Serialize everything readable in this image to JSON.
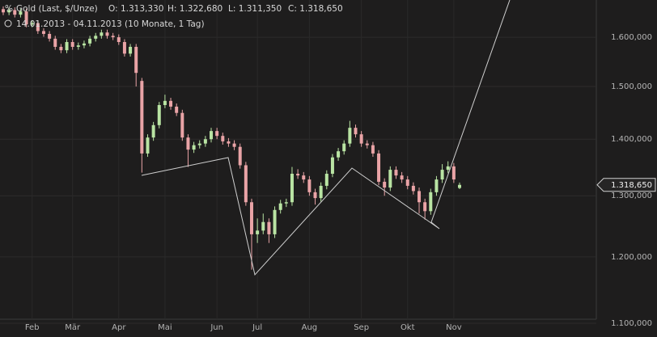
{
  "header": {
    "title": "Gold (Last, $/Unze)",
    "ohlc_labels": [
      "O: 1.313,330",
      "H: 1.322,680",
      "L: 1.311,350",
      "C: 1.318,650"
    ],
    "date_range": "14.01.2013 - 04.11.2013 (10 Monate, 1 Tag)"
  },
  "chart_data": {
    "type": "candlestick",
    "log_scale": true,
    "grid": true,
    "up_color": "#b9e4a3",
    "down_color": "#e9a3a6",
    "categories": [
      null,
      null,
      null,
      null,
      null,
      "Feb",
      null,
      null,
      null,
      null,
      null,
      null,
      "Mär",
      null,
      null,
      null,
      null,
      null,
      null,
      null,
      "Apr",
      null,
      null,
      null,
      null,
      null,
      null,
      null,
      "Mai",
      null,
      null,
      null,
      null,
      null,
      null,
      null,
      null,
      "Jun",
      null,
      null,
      null,
      null,
      null,
      null,
      "Jul",
      null,
      null,
      null,
      null,
      null,
      null,
      null,
      null,
      "Aug",
      null,
      null,
      null,
      null,
      null,
      null,
      null,
      null,
      "Sep",
      null,
      null,
      null,
      null,
      null,
      null,
      null,
      "Okt",
      null,
      null,
      null,
      null,
      null,
      null,
      null,
      "Nov",
      null
    ],
    "open": [
      1660000,
      1653000,
      1658000,
      1648000,
      1655000,
      1627000,
      1630000,
      1613000,
      1607000,
      1597000,
      1580000,
      1573000,
      1590000,
      1580000,
      1583000,
      1587000,
      1597000,
      1603000,
      1610000,
      1603000,
      1600000,
      1590000,
      1566000,
      1580000,
      1511000,
      1374000,
      1403000,
      1426000,
      1464000,
      1472000,
      1461000,
      1449000,
      1403000,
      1381000,
      1389000,
      1392000,
      1400000,
      1415000,
      1406000,
      1396000,
      1392000,
      1386000,
      1353000,
      1289000,
      1236000,
      1242000,
      1256000,
      1236000,
      1276000,
      1287000,
      1289000,
      1338000,
      1335000,
      1328000,
      1306000,
      1296000,
      1317000,
      1338000,
      1367000,
      1378000,
      1392000,
      1421000,
      1409000,
      1392000,
      1389000,
      1374000,
      1324000,
      1314000,
      1345000,
      1335000,
      1328000,
      1317000,
      1308000,
      1289000,
      1274000,
      1306000,
      1328000,
      1345000,
      1351000,
      1313330
    ],
    "high": [
      1666000,
      1664000,
      1664000,
      1661000,
      1661000,
      1636000,
      1636000,
      1619000,
      1613000,
      1603000,
      1586000,
      1596000,
      1596000,
      1589000,
      1593000,
      1603000,
      1609000,
      1616000,
      1616000,
      1609000,
      1606000,
      1596000,
      1586000,
      1586000,
      1517000,
      1409000,
      1432000,
      1470000,
      1484000,
      1478000,
      1467000,
      1455000,
      1409000,
      1395000,
      1398000,
      1406000,
      1421000,
      1421000,
      1412000,
      1402000,
      1398000,
      1392000,
      1359000,
      1295000,
      1262000,
      1270000,
      1262000,
      1282000,
      1293000,
      1295000,
      1350000,
      1346000,
      1341000,
      1334000,
      1312000,
      1323000,
      1344000,
      1373000,
      1384000,
      1398000,
      1434000,
      1427000,
      1415000,
      1398000,
      1395000,
      1380000,
      1330000,
      1351000,
      1351000,
      1341000,
      1334000,
      1323000,
      1314000,
      1295000,
      1312000,
      1334000,
      1355000,
      1360000,
      1357000,
      1322680
    ],
    "low": [
      1647000,
      1647000,
      1642000,
      1642000,
      1621000,
      1621000,
      1607000,
      1601000,
      1591000,
      1574000,
      1567000,
      1567000,
      1574000,
      1574000,
      1577000,
      1581000,
      1591000,
      1597000,
      1597000,
      1594000,
      1584000,
      1560000,
      1560000,
      1500000,
      1340000,
      1368000,
      1397000,
      1420000,
      1458000,
      1455000,
      1443000,
      1397000,
      1350000,
      1375000,
      1383000,
      1386000,
      1394000,
      1400000,
      1390000,
      1386000,
      1380000,
      1347000,
      1283000,
      1180000,
      1222000,
      1236000,
      1222000,
      1230000,
      1270000,
      1281000,
      1283000,
      1329000,
      1322000,
      1300000,
      1285000,
      1290000,
      1311000,
      1332000,
      1361000,
      1372000,
      1386000,
      1403000,
      1386000,
      1383000,
      1368000,
      1318000,
      1300000,
      1308000,
      1329000,
      1322000,
      1311000,
      1302000,
      1270000,
      1260000,
      1268000,
      1300000,
      1322000,
      1339000,
      1322000,
      1311350
    ],
    "close": [
      1653000,
      1658000,
      1648000,
      1655000,
      1627000,
      1630000,
      1613000,
      1607000,
      1597000,
      1580000,
      1573000,
      1590000,
      1580000,
      1583000,
      1587000,
      1597000,
      1603000,
      1610000,
      1603000,
      1600000,
      1590000,
      1566000,
      1580000,
      1527000,
      1374000,
      1403000,
      1426000,
      1464000,
      1472000,
      1461000,
      1449000,
      1403000,
      1381000,
      1389000,
      1392000,
      1400000,
      1415000,
      1406000,
      1396000,
      1392000,
      1386000,
      1353000,
      1289000,
      1236000,
      1242000,
      1256000,
      1236000,
      1276000,
      1287000,
      1289000,
      1338000,
      1335000,
      1328000,
      1306000,
      1296000,
      1317000,
      1338000,
      1367000,
      1378000,
      1392000,
      1421000,
      1409000,
      1392000,
      1389000,
      1374000,
      1324000,
      1314000,
      1345000,
      1335000,
      1328000,
      1317000,
      1308000,
      1289000,
      1274000,
      1306000,
      1328000,
      1345000,
      1351000,
      1328000,
      1318650
    ],
    "ylim": [
      1100000,
      1680000
    ],
    "yticks": [
      {
        "value": 1100000,
        "label": "1.100,000"
      },
      {
        "value": 1200000,
        "label": "1.200,000"
      },
      {
        "value": 1300000,
        "label": "1.300,000"
      },
      {
        "value": 1400000,
        "label": "1.400,000"
      },
      {
        "value": 1500000,
        "label": "1.500,000"
      },
      {
        "value": 1600000,
        "label": "1.600,000"
      }
    ],
    "last_price": {
      "value": 1318650,
      "label": "1.318,650"
    }
  }
}
